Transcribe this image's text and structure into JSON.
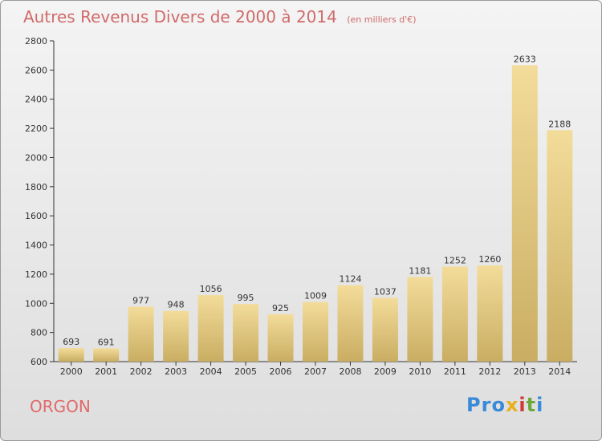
{
  "header": {
    "title": "Autres Revenus Divers de 2000 à 2014",
    "unit": "(en milliers d'€)"
  },
  "footer": {
    "place": "ORGON",
    "brand": "Proxiti",
    "brand_letters": [
      "P",
      "r",
      "o",
      "x",
      "i",
      "t",
      "i"
    ]
  },
  "colors": {
    "title": "#d06a6a",
    "place": "#e06a6a",
    "bar_top": "#f3dc9a",
    "bar_bottom": "#c9ad62",
    "axis": "#333333",
    "brand": [
      "#3a8ad8",
      "#3a8ad8",
      "#3a8ad8",
      "#e8b020",
      "#d03a3a",
      "#6aa83a",
      "#3a8ad8"
    ]
  },
  "chart_data": {
    "type": "bar",
    "title": "Autres Revenus Divers de 2000 à 2014",
    "subtitle": "(en milliers d'€)",
    "categories": [
      "2000",
      "2001",
      "2002",
      "2003",
      "2004",
      "2005",
      "2006",
      "2007",
      "2008",
      "2009",
      "2010",
      "2011",
      "2012",
      "2013",
      "2014"
    ],
    "values": [
      693,
      691,
      977,
      948,
      1056,
      995,
      925,
      1009,
      1124,
      1037,
      1181,
      1252,
      1260,
      2633,
      2188
    ],
    "ylim": [
      600,
      2800
    ],
    "yticks": [
      600,
      800,
      1000,
      1200,
      1400,
      1600,
      1800,
      2000,
      2200,
      2400,
      2600,
      2800
    ],
    "grid": false,
    "xlabel": "",
    "ylabel": ""
  }
}
